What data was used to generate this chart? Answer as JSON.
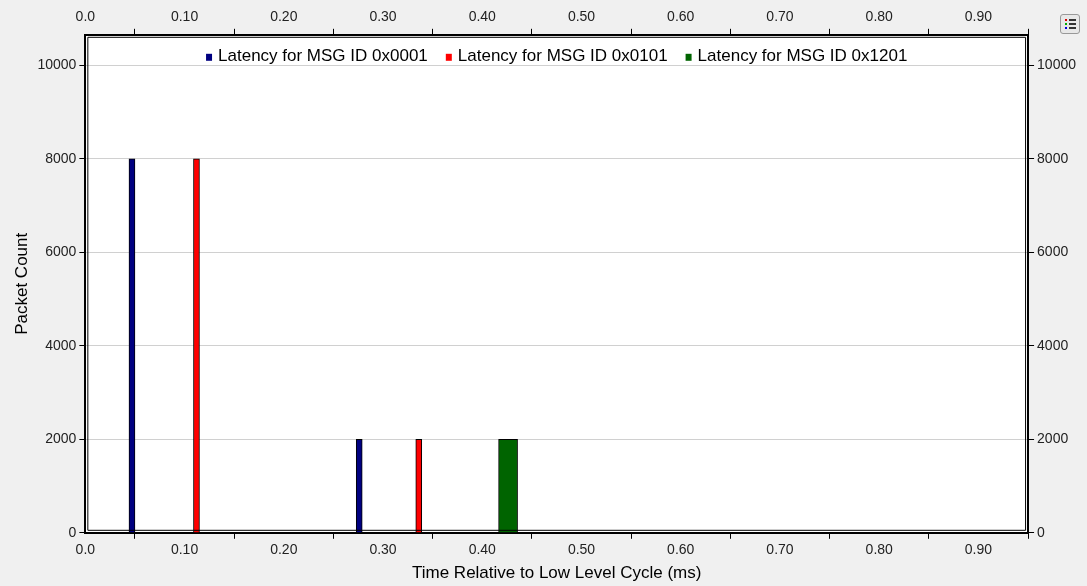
{
  "chart_data": {
    "type": "bar",
    "xlabel": "Time Relative to Low Level Cycle (ms)",
    "ylabel": "Packet Count",
    "series": [
      {
        "name": "Latency for MSG ID 0x0001",
        "color": "#000080",
        "x": [
          0.047,
          0.276
        ],
        "values": [
          8000,
          2000
        ]
      },
      {
        "name": "Latency for MSG ID 0x0101",
        "color": "#ff0000",
        "x": [
          0.112,
          0.336
        ],
        "values": [
          8000,
          2000
        ]
      },
      {
        "name": "Latency for MSG ID 0x1201",
        "color": "#006400",
        "x": [
          0.426
        ],
        "values": [
          2000
        ]
      }
    ],
    "xlim": [
      0,
      0.95
    ],
    "xticks": [
      {
        "value": 0,
        "label": "0.0"
      },
      {
        "value": 0.1,
        "label": "0.10"
      },
      {
        "value": 0.2,
        "label": "0.20"
      },
      {
        "value": 0.3,
        "label": "0.30"
      },
      {
        "value": 0.4,
        "label": "0.40"
      },
      {
        "value": 0.5,
        "label": "0.50"
      },
      {
        "value": 0.6,
        "label": "0.60"
      },
      {
        "value": 0.7,
        "label": "0.70"
      },
      {
        "value": 0.8,
        "label": "0.80"
      },
      {
        "value": 0.9,
        "label": "0.90"
      }
    ],
    "x2lim": [
      0,
      0.95
    ],
    "x2ticks": [
      {
        "value": 0,
        "label": "0.0"
      },
      {
        "value": 0.1,
        "label": "0.10"
      },
      {
        "value": 0.2,
        "label": "0.20"
      },
      {
        "value": 0.3,
        "label": "0.30"
      },
      {
        "value": 0.4,
        "label": "0.40"
      },
      {
        "value": 0.5,
        "label": "0.50"
      },
      {
        "value": 0.6,
        "label": "0.60"
      },
      {
        "value": 0.7,
        "label": "0.70"
      },
      {
        "value": 0.8,
        "label": "0.80"
      },
      {
        "value": 0.9,
        "label": "0.90"
      }
    ],
    "ylim": [
      0,
      10650
    ],
    "yticks": [
      0,
      2000,
      4000,
      6000,
      8000,
      10000
    ],
    "y2lim": [
      0,
      10650
    ],
    "y2ticks": [
      0,
      2000,
      4000,
      6000,
      8000,
      10000
    ],
    "grid": "y",
    "legend": "top"
  }
}
